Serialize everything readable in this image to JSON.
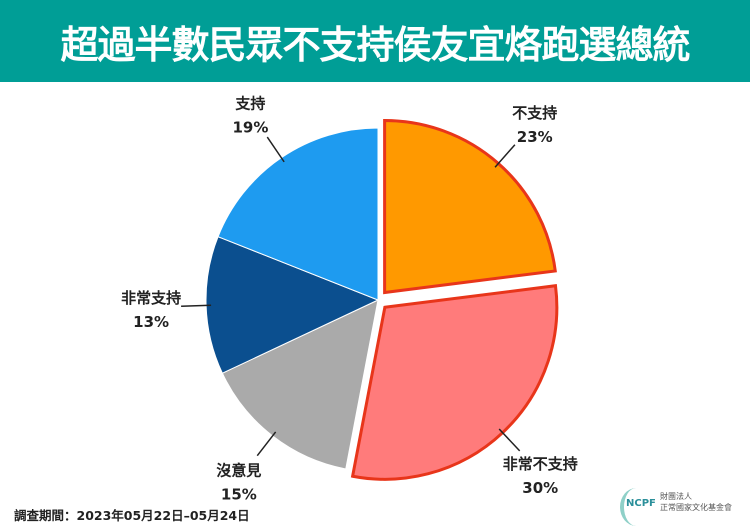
{
  "title": "超過半數民眾不支持侯友宜烙跑選總統",
  "footer": "調查期間：2023年05月22日–05月24日",
  "logo": {
    "abbr": "NCPF",
    "line1": "財團法人",
    "line2": "正常國家文化基金會"
  },
  "chart_data": {
    "type": "pie",
    "start": "12 o'clock, clockwise",
    "slices": [
      {
        "label": "不支持",
        "value": 23,
        "color": "#ff9900",
        "exploded": true,
        "border": "#e8351a"
      },
      {
        "label": "非常不支持",
        "value": 30,
        "color": "#ff7b7b",
        "exploded": true,
        "border": "#e8351a"
      },
      {
        "label": "沒意見",
        "value": 15,
        "color": "#aaaaaa",
        "exploded": false
      },
      {
        "label": "非常支持",
        "value": 13,
        "color": "#0b4f8f",
        "exploded": false
      },
      {
        "label": "支持",
        "value": 19,
        "color": "#1e9bf0",
        "exploded": false
      }
    ]
  }
}
